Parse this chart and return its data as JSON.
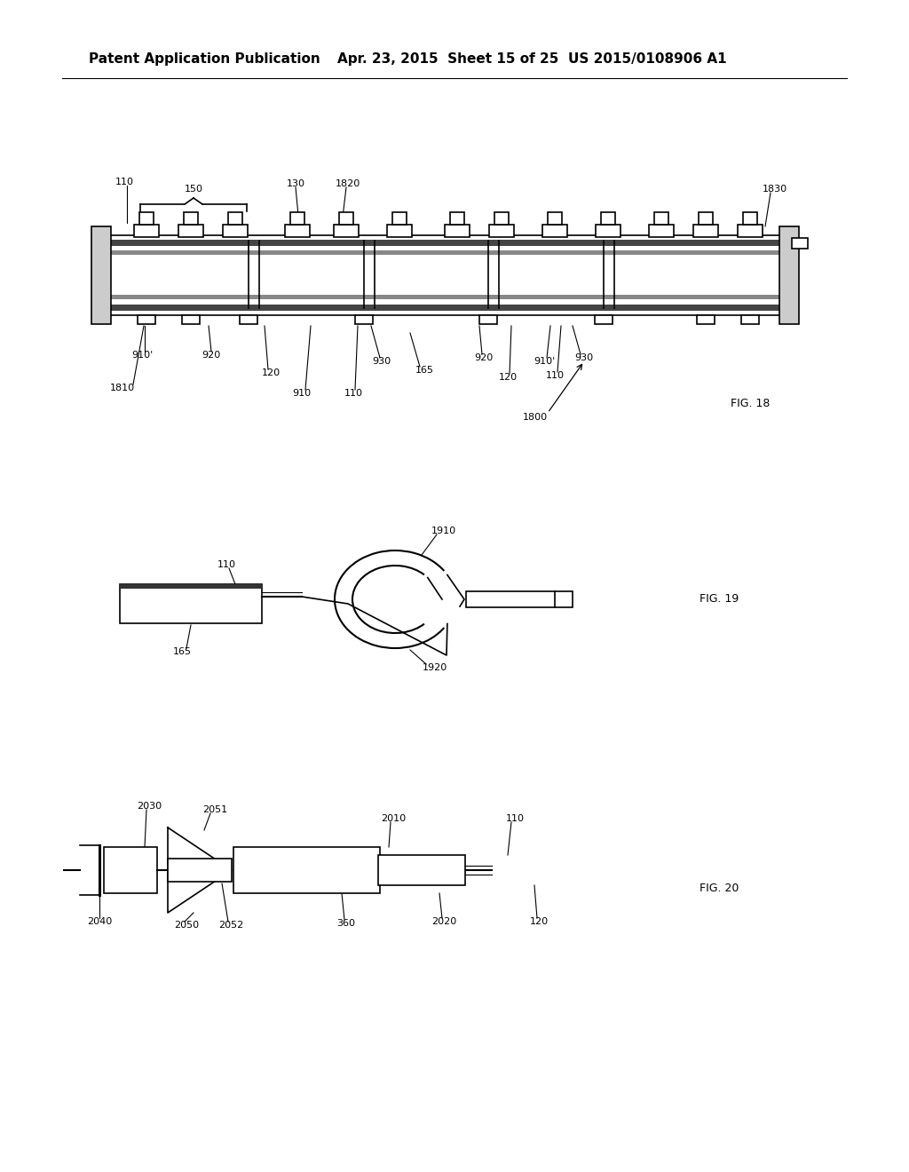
{
  "bg_color": "#ffffff",
  "text_color": "#000000",
  "line_color": "#000000",
  "header_left": "Patent Application Publication",
  "header_mid": "Apr. 23, 2015  Sheet 15 of 25",
  "header_right": "US 2015/0108906 A1",
  "fig18_label": "FIG. 18",
  "fig19_label": "FIG. 19",
  "fig20_label": "FIG. 20",
  "font_size_header": 11,
  "font_size_labels": 8,
  "font_size_fig": 9
}
